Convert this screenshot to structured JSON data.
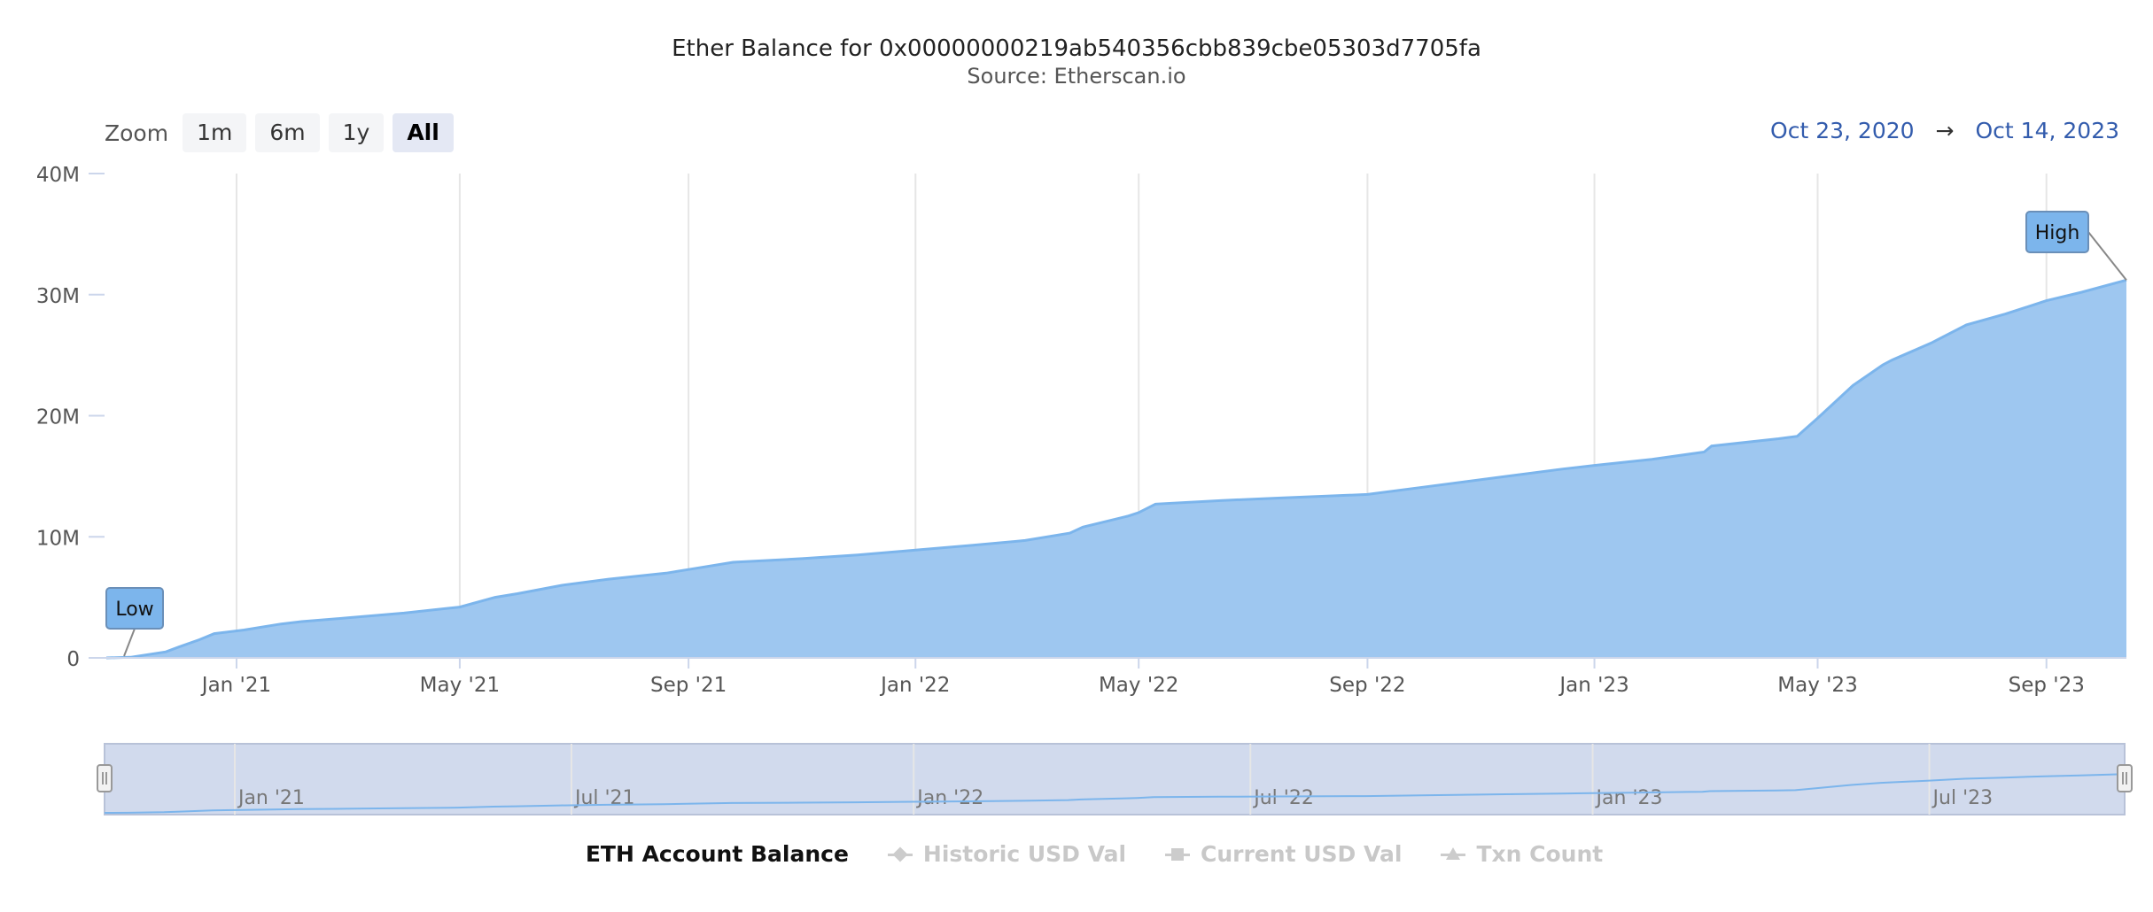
{
  "header": {
    "title": "Ether Balance for 0x00000000219ab540356cbb839cbe05303d7705fa",
    "subtitle": "Source: Etherscan.io"
  },
  "zoom": {
    "label": "Zoom",
    "buttons": [
      "1m",
      "6m",
      "1y",
      "All"
    ],
    "active": "All"
  },
  "range": {
    "from": "Oct 23, 2020",
    "arrow": "→",
    "to": "Oct 14, 2023"
  },
  "colors": {
    "series_fill": "#9ec7f0",
    "series_line": "#7cb5ec",
    "navigator_bg": "#ccd6eb",
    "flag_fill": "#7cb5ec"
  },
  "chart_data": {
    "type": "area",
    "title": "Ether Balance for 0x00000000219ab540356cbb839cbe05303d7705fa",
    "subtitle": "Source: Etherscan.io",
    "y_ticks": [
      "0",
      "10M",
      "20M",
      "30M",
      "40M"
    ],
    "ylim": [
      0,
      40000000
    ],
    "xlim": [
      "2020-10-23",
      "2023-10-14"
    ],
    "x_ticks": [
      {
        "label": "Jan '21",
        "date": "2021-01-01"
      },
      {
        "label": "May '21",
        "date": "2021-05-01"
      },
      {
        "label": "Sep '21",
        "date": "2021-09-01"
      },
      {
        "label": "Jan '22",
        "date": "2022-01-01"
      },
      {
        "label": "May '22",
        "date": "2022-05-01"
      },
      {
        "label": "Sep '22",
        "date": "2022-09-01"
      },
      {
        "label": "Jan '23",
        "date": "2023-01-01"
      },
      {
        "label": "May '23",
        "date": "2023-05-01"
      },
      {
        "label": "Sep '23",
        "date": "2023-09-01"
      }
    ],
    "navigator_ticks": [
      {
        "label": "Jan '21",
        "date": "2021-01-01"
      },
      {
        "label": "Jul '21",
        "date": "2021-07-01"
      },
      {
        "label": "Jan '22",
        "date": "2022-01-01"
      },
      {
        "label": "Jul '22",
        "date": "2022-07-01"
      },
      {
        "label": "Jan '23",
        "date": "2023-01-01"
      },
      {
        "label": "Jul '23",
        "date": "2023-07-01"
      }
    ],
    "grid": true,
    "series": [
      {
        "name": "ETH Account Balance",
        "x": [
          "2020-10-23",
          "2020-11-05",
          "2020-11-24",
          "2020-12-01",
          "2020-12-12",
          "2020-12-20",
          "2021-01-05",
          "2021-01-25",
          "2021-02-05",
          "2021-03-01",
          "2021-04-01",
          "2021-05-01",
          "2021-05-20",
          "2021-06-01",
          "2021-06-25",
          "2021-07-20",
          "2021-08-20",
          "2021-09-01",
          "2021-09-25",
          "2021-11-01",
          "2021-12-01",
          "2022-01-01",
          "2022-02-01",
          "2022-03-01",
          "2022-03-25",
          "2022-04-01",
          "2022-04-25",
          "2022-05-01",
          "2022-05-10",
          "2022-06-15",
          "2022-07-15",
          "2022-09-01",
          "2022-10-01",
          "2022-11-15",
          "2022-12-15",
          "2023-01-01",
          "2023-02-01",
          "2023-03-01",
          "2023-03-05",
          "2023-04-10",
          "2023-04-20",
          "2023-05-01",
          "2023-05-20",
          "2023-06-05",
          "2023-06-10",
          "2023-07-01",
          "2023-07-20",
          "2023-08-10",
          "2023-09-01",
          "2023-09-20",
          "2023-10-14"
        ],
        "y": [
          0,
          50000,
          500000,
          900000,
          1500000,
          2000000,
          2300000,
          2800000,
          3000000,
          3300000,
          3700000,
          4200000,
          5000000,
          5300000,
          6000000,
          6500000,
          7000000,
          7300000,
          7900000,
          8200000,
          8500000,
          8900000,
          9300000,
          9700000,
          10300000,
          10800000,
          11700000,
          12000000,
          12700000,
          13000000,
          13200000,
          13500000,
          14100000,
          15000000,
          15600000,
          15900000,
          16400000,
          17000000,
          17500000,
          18100000,
          18300000,
          19800000,
          22500000,
          24200000,
          24600000,
          26000000,
          27500000,
          28400000,
          29500000,
          30200000,
          31200000
        ]
      }
    ],
    "flags": [
      {
        "label": "Low",
        "date": "2020-10-23",
        "value": 0
      },
      {
        "label": "High",
        "date": "2023-10-14",
        "value": 31200000
      }
    ]
  },
  "legend": {
    "items": [
      {
        "label": "ETH Account Balance",
        "symbol": "dot",
        "active": true
      },
      {
        "label": "Historic USD Val",
        "symbol": "diamond",
        "active": false
      },
      {
        "label": "Current USD Val",
        "symbol": "square",
        "active": false
      },
      {
        "label": "Txn Count",
        "symbol": "triangle",
        "active": false
      }
    ]
  }
}
